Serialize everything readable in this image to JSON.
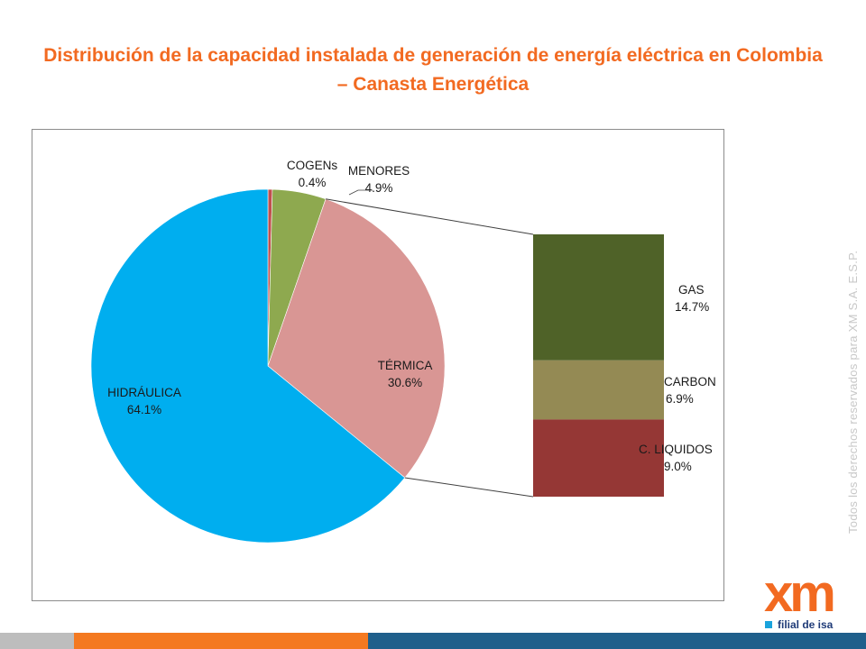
{
  "title": "Distribución de la capacidad instalada de generación de energía eléctrica en Colombia – Canasta Energética",
  "side_text": "Todos los derechos reservados para XM S.A. E.S.P.",
  "logo": {
    "brand": "xm",
    "tagline": "filial de isa"
  },
  "colors": {
    "title": "#F26A21",
    "hidraulica": "#00AEEF",
    "termica": "#D99694",
    "menores": "#8EA94F",
    "cogens": "#C0504D",
    "gas": "#4F6228",
    "carbon": "#948A54",
    "liquidos": "#953735"
  },
  "chart_data": {
    "type": "pie-of-bar",
    "title": "Distribución de la capacidad instalada de generación de energía eléctrica en Colombia – Canasta Energética",
    "pie": [
      {
        "name": "COGENs",
        "value": 0.4,
        "label": "0.4%"
      },
      {
        "name": "MENORES",
        "value": 4.9,
        "label": "4.9%"
      },
      {
        "name": "TÉRMICA",
        "value": 30.6,
        "label": "30.6%"
      },
      {
        "name": "HIDRÁULICA",
        "value": 64.1,
        "label": "64.1%"
      }
    ],
    "breakdown_of": "TÉRMICA",
    "bar": [
      {
        "name": "GAS",
        "value": 14.7,
        "label": "14.7%"
      },
      {
        "name": "CARBON",
        "value": 6.9,
        "label": "6.9%"
      },
      {
        "name": "C. LIQUIDOS",
        "value": 9.0,
        "label": "9.0%"
      }
    ]
  }
}
